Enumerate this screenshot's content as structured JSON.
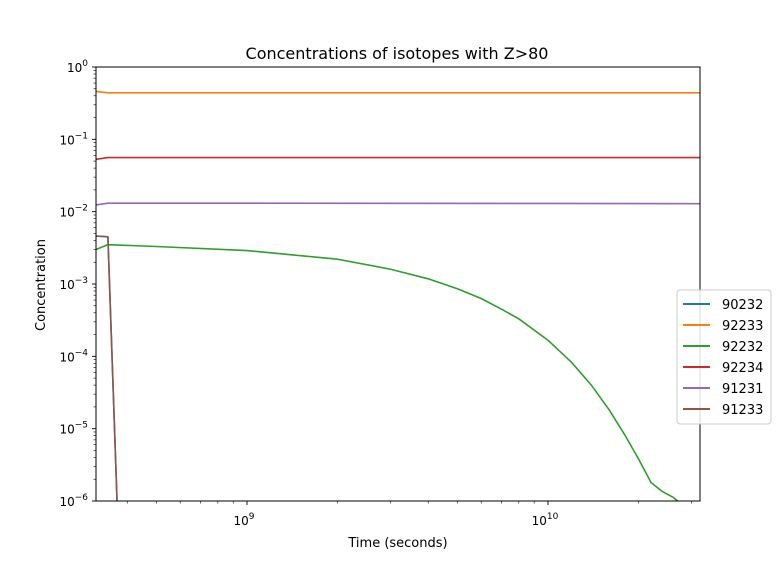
{
  "chart_data": {
    "type": "line",
    "title": "Concentrations of isotopes with Z>80",
    "xlabel": "Time (seconds)",
    "ylabel": "Concentration",
    "xscale": "log",
    "yscale": "log",
    "xlim": [
      315000000.0,
      32000000000.0
    ],
    "ylim": [
      1e-06,
      1
    ],
    "grid": false,
    "legend_position": "right",
    "xticks": [
      {
        "value": 1000000000.0,
        "base": "10",
        "exp": "9"
      },
      {
        "value": 10000000000.0,
        "base": "10",
        "exp": "10"
      }
    ],
    "yticks": [
      {
        "value": 1e-06,
        "base": "10",
        "exp": "−6"
      },
      {
        "value": 1e-05,
        "base": "10",
        "exp": "−5"
      },
      {
        "value": 0.0001,
        "base": "10",
        "exp": "−4"
      },
      {
        "value": 0.001,
        "base": "10",
        "exp": "−3"
      },
      {
        "value": 0.01,
        "base": "10",
        "exp": "−2"
      },
      {
        "value": 0.1,
        "base": "10",
        "exp": "−1"
      },
      {
        "value": 1,
        "base": "10",
        "exp": "0"
      }
    ],
    "series": [
      {
        "name": "90232",
        "color": "#1f77b4",
        "x": [
          315000000.0,
          345000000.0,
          370000000.0
        ],
        "y": [
          0.0046,
          0.0045,
          1e-06
        ]
      },
      {
        "name": "92233",
        "color": "#ff7f0e",
        "x": [
          315000000.0,
          345000000.0,
          1000000000.0,
          10000000000.0,
          32000000000.0
        ],
        "y": [
          0.46,
          0.44,
          0.44,
          0.44,
          0.44
        ]
      },
      {
        "name": "92232",
        "color": "#2ca02c",
        "x": [
          315000000.0,
          345000000.0,
          500000000.0,
          1000000000.0,
          2000000000.0,
          3000000000.0,
          4000000000.0,
          5000000000.0,
          6000000000.0,
          7000000000.0,
          8000000000.0,
          10000000000.0,
          12000000000.0,
          14000000000.0,
          16000000000.0,
          18000000000.0,
          20000000000.0,
          22000000000.0,
          24000000000.0,
          26000000000.0,
          27000000000.0
        ],
        "y": [
          0.003,
          0.0035,
          0.0033,
          0.0029,
          0.0022,
          0.0016,
          0.00118,
          0.00086,
          0.00063,
          0.00045,
          0.00033,
          0.000167,
          8.2e-05,
          3.9e-05,
          1.8e-05,
          8.2e-06,
          3.8e-06,
          1.8e-06,
          1.35e-06,
          1.13e-06,
          1e-06
        ]
      },
      {
        "name": "92234",
        "color": "#d62728",
        "x": [
          315000000.0,
          345000000.0,
          1000000000.0,
          10000000000.0,
          32000000000.0
        ],
        "y": [
          0.053,
          0.056,
          0.056,
          0.056,
          0.056
        ]
      },
      {
        "name": "91231",
        "color": "#9467bd",
        "x": [
          315000000.0,
          345000000.0,
          1000000000.0,
          10000000000.0,
          32000000000.0
        ],
        "y": [
          0.0124,
          0.0131,
          0.0131,
          0.013,
          0.0129
        ]
      },
      {
        "name": "91233",
        "color": "#8c564b",
        "x": [
          315000000.0,
          345000000.0,
          370000000.0
        ],
        "y": [
          0.0046,
          0.0045,
          1e-06
        ]
      }
    ]
  }
}
